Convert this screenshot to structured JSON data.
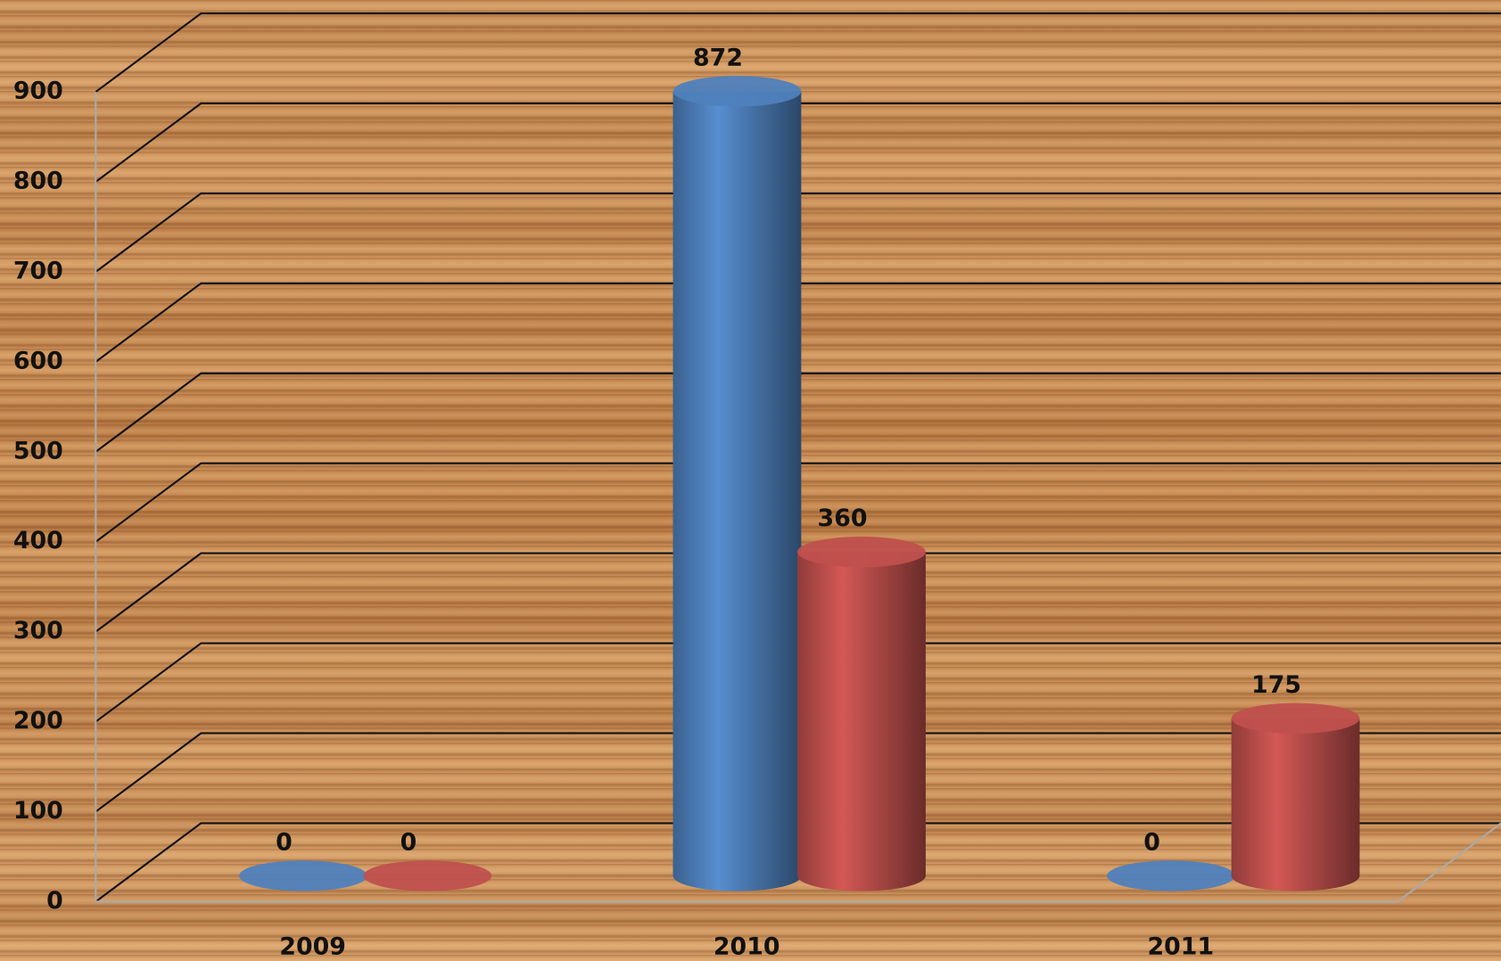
{
  "chart_data": {
    "type": "bar",
    "categories": [
      "2009",
      "2010",
      "2011"
    ],
    "series": [
      {
        "color": "#4f81bd",
        "values": [
          0,
          872,
          0
        ]
      },
      {
        "color": "#c0504d",
        "values": [
          0,
          360,
          175
        ]
      }
    ],
    "ylim": [
      0,
      900
    ],
    "yticks": [
      0,
      100,
      200,
      300,
      400,
      500,
      600,
      700,
      800,
      900
    ],
    "grid": true
  }
}
